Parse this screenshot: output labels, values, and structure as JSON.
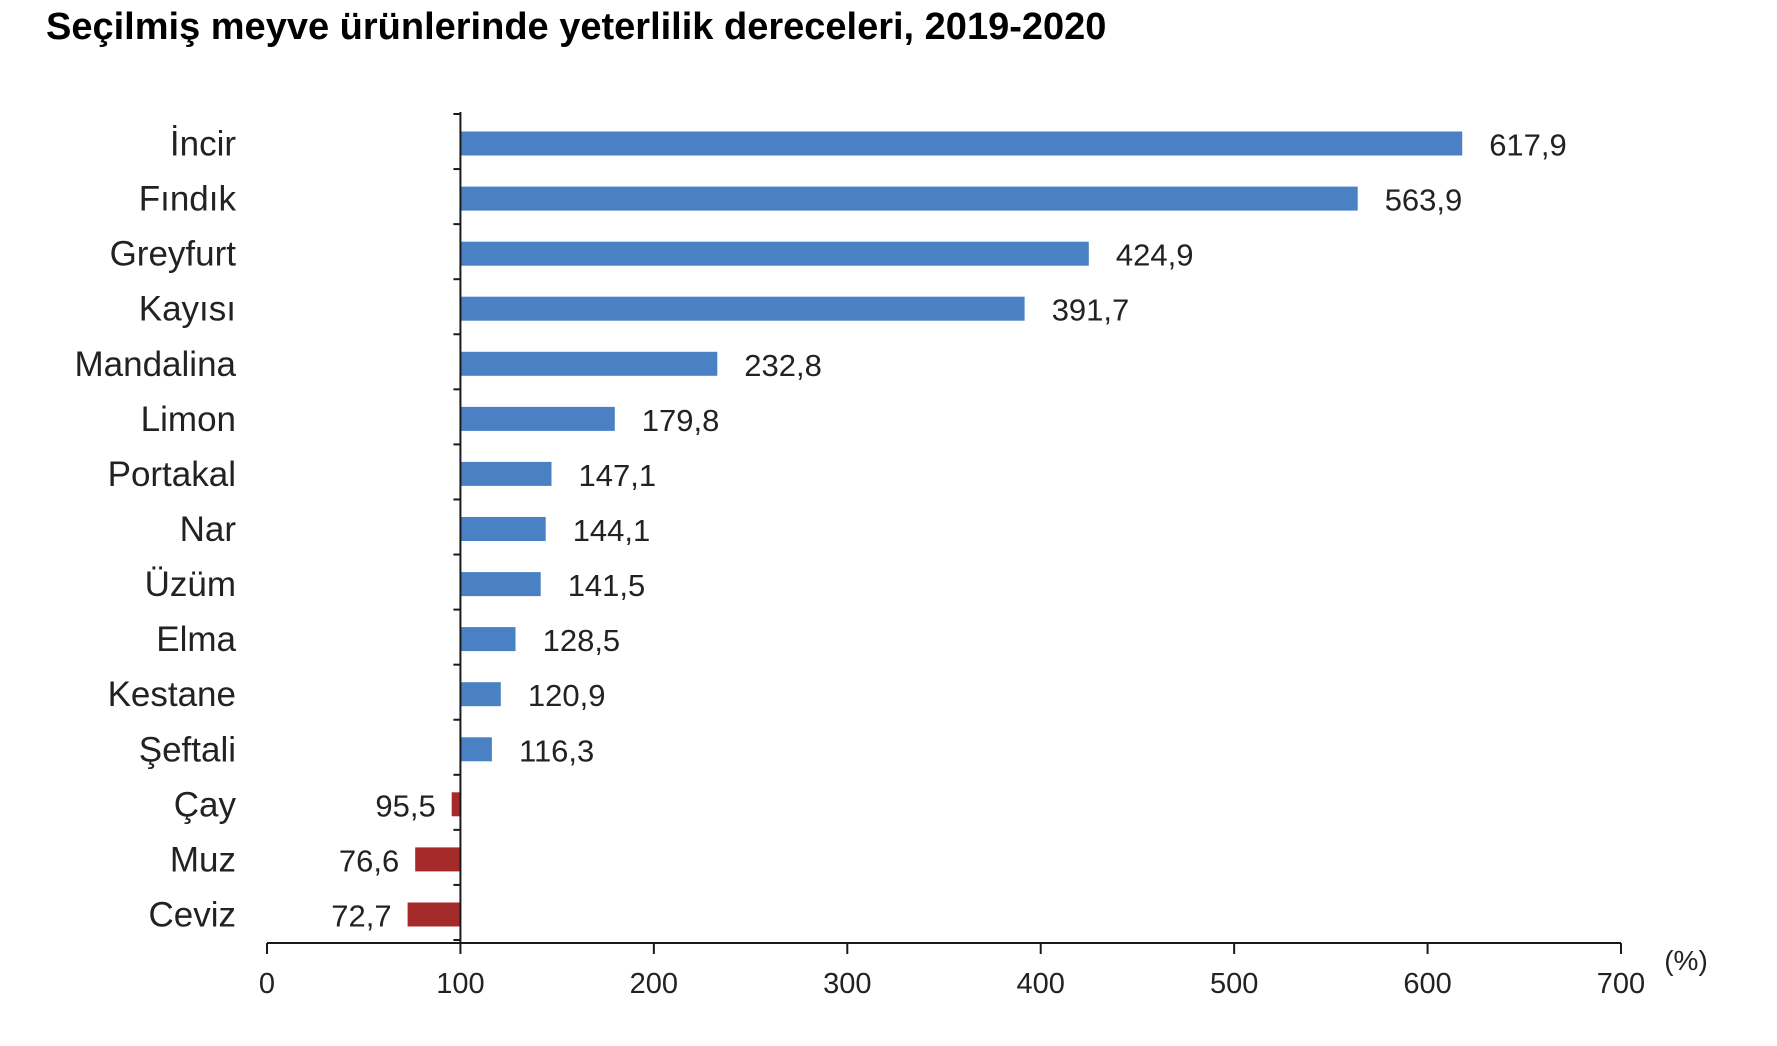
{
  "title": "Seçilmiş meyve ürünlerinde yeterlilik dereceleri, 2019-2020",
  "colors": {
    "above_100": "#4a81c4",
    "below_100": "#a52a2a",
    "axis": "#1a1a1a",
    "text": "#222222"
  },
  "chart_data": {
    "type": "bar",
    "orientation": "horizontal",
    "title": "Seçilmiş meyve ürünlerinde yeterlilik dereceleri, 2019-2020",
    "categories": [
      "İncir",
      "Fındık",
      "Greyfurt",
      "Kayısı",
      "Mandalina",
      "Limon",
      "Portakal",
      "Nar",
      "Üzüm",
      "Elma",
      "Kestane",
      "Şeftali",
      "Çay",
      "Muz",
      "Ceviz"
    ],
    "values": [
      617.9,
      563.9,
      424.9,
      391.7,
      232.8,
      179.8,
      147.1,
      144.1,
      141.5,
      128.5,
      120.9,
      116.3,
      95.5,
      76.6,
      72.7
    ],
    "value_labels": [
      "617,9",
      "563,9",
      "424,9",
      "391,7",
      "232,8",
      "179,8",
      "147,1",
      "144,1",
      "141,5",
      "128,5",
      "120,9",
      "116,3",
      "95,5",
      "76,6",
      "72,7"
    ],
    "baseline": 100,
    "xlim": [
      0,
      700
    ],
    "xticks": [
      0,
      100,
      200,
      300,
      400,
      500,
      600,
      700
    ],
    "xtick_labels": [
      "0",
      "100",
      "200",
      "300",
      "400",
      "500",
      "600",
      "700"
    ],
    "x_unit": "(%)",
    "xlabel": "",
    "ylabel": "",
    "grid": false,
    "legend": "none"
  }
}
